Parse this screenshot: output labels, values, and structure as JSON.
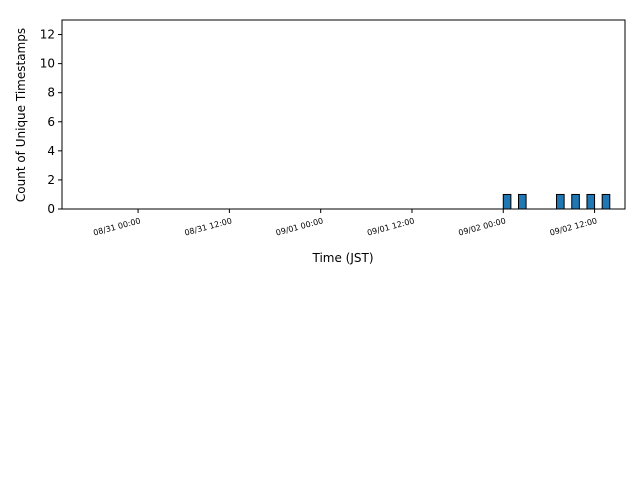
{
  "chart_data": {
    "type": "bar",
    "x_label": "Time (JST)",
    "y_label": "Count of Unique Timestamps",
    "x": [
      "09/02 00:00",
      "09/02 02:00",
      "09/02 07:00",
      "09/02 09:00",
      "09/02 11:00",
      "09/02 13:00"
    ],
    "values": [
      1,
      1,
      1,
      1,
      1,
      1
    ],
    "color": "#1f77b4",
    "xlim": [
      "08/30 14:00",
      "09/02 16:00"
    ],
    "xticks": [
      "08/31 00:00",
      "08/31 12:00",
      "09/01 00:00",
      "09/01 12:00",
      "09/02 00:00",
      "09/02 12:00"
    ],
    "ylim": [
      0,
      13
    ],
    "yticks": [
      0,
      2,
      4,
      6,
      8,
      10,
      12
    ]
  }
}
